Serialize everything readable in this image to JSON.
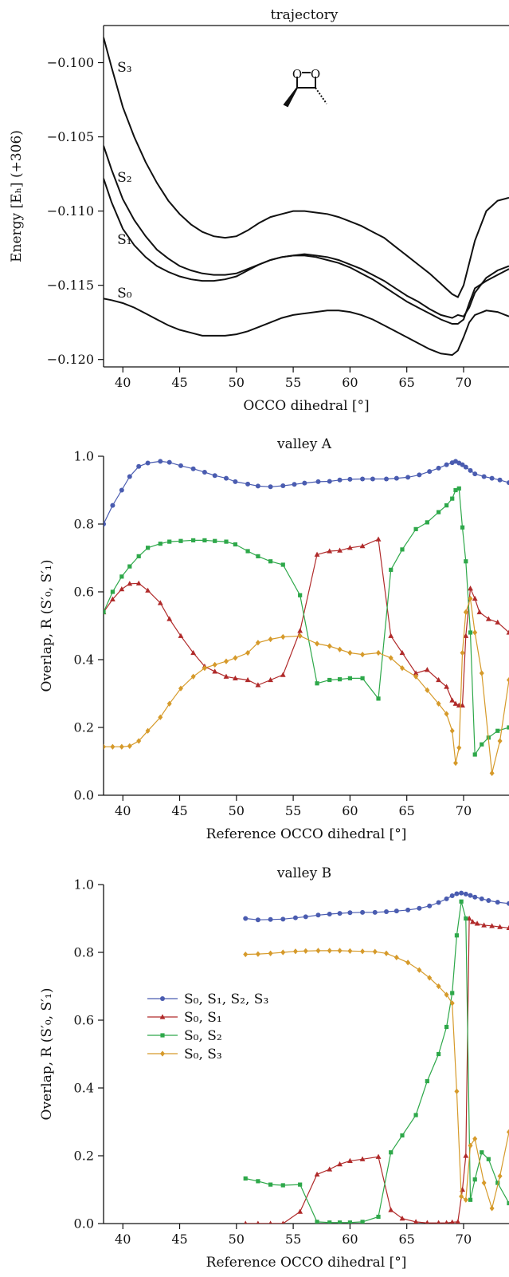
{
  "chart_data": [
    {
      "type": "line",
      "title": "trajectory",
      "xlabel": "OCCO dihedral [°]",
      "ylabel": "Energy [Eₕ] (+306)",
      "xlim": [
        38.3,
        74
      ],
      "ylim": [
        -0.1205,
        -0.0975
      ],
      "xticks": [
        "40",
        "45",
        "50",
        "55",
        "60",
        "65",
        "70"
      ],
      "yticks": [
        "−0.100",
        "−0.105",
        "−0.110",
        "−0.115",
        "−0.120"
      ],
      "grid": false,
      "series": [
        {
          "name": "S₃",
          "color": "#111111",
          "x": [
            38.3,
            39,
            40,
            41,
            42,
            43,
            44,
            45,
            46,
            47,
            48,
            49,
            50,
            51,
            52,
            53,
            54,
            55,
            56,
            57,
            58,
            59,
            60,
            61,
            62,
            63,
            64,
            65,
            66,
            67,
            68,
            69,
            69.5,
            70,
            70.5,
            71,
            72,
            73,
            74
          ],
          "y": [
            -0.0983,
            -0.1003,
            -0.103,
            -0.105,
            -0.1067,
            -0.1081,
            -0.1093,
            -0.1102,
            -0.1109,
            -0.1114,
            -0.1117,
            -0.1118,
            -0.1117,
            -0.1113,
            -0.1108,
            -0.1104,
            -0.1102,
            -0.11,
            -0.11,
            -0.1101,
            -0.1102,
            -0.1104,
            -0.1107,
            -0.111,
            -0.1114,
            -0.1118,
            -0.1124,
            -0.113,
            -0.1136,
            -0.1142,
            -0.1149,
            -0.1156,
            -0.1158,
            -0.115,
            -0.1135,
            -0.112,
            -0.11,
            -0.1093,
            -0.1091
          ]
        },
        {
          "name": "S₂",
          "color": "#111111",
          "x": [
            38.3,
            39,
            40,
            41,
            42,
            43,
            44,
            45,
            46,
            47,
            48,
            49,
            50,
            51,
            52,
            53,
            54,
            55,
            56,
            57,
            58,
            59,
            60,
            61,
            62,
            63,
            64,
            65,
            66,
            67,
            68,
            69,
            69.5,
            70,
            70.5,
            71,
            72,
            73,
            74
          ],
          "y": [
            -0.1056,
            -0.1072,
            -0.1092,
            -0.1106,
            -0.1117,
            -0.1126,
            -0.1132,
            -0.1137,
            -0.114,
            -0.1142,
            -0.1143,
            -0.1143,
            -0.1142,
            -0.1139,
            -0.1136,
            -0.1133,
            -0.1131,
            -0.113,
            -0.1129,
            -0.113,
            -0.1131,
            -0.1133,
            -0.1136,
            -0.1139,
            -0.1143,
            -0.1147,
            -0.1152,
            -0.1157,
            -0.1161,
            -0.1166,
            -0.117,
            -0.1172,
            -0.117,
            -0.1171,
            -0.1165,
            -0.1155,
            -0.1145,
            -0.114,
            -0.1137
          ]
        },
        {
          "name": "S₁",
          "color": "#111111",
          "x": [
            38.3,
            39,
            40,
            41,
            42,
            43,
            44,
            45,
            46,
            47,
            48,
            49,
            50,
            51,
            52,
            53,
            54,
            55,
            56,
            57,
            58,
            59,
            60,
            61,
            62,
            63,
            64,
            65,
            66,
            67,
            68,
            69,
            69.5,
            70,
            70.5,
            71,
            72,
            73,
            74
          ],
          "y": [
            -0.1078,
            -0.1094,
            -0.1112,
            -0.1123,
            -0.1131,
            -0.1137,
            -0.1141,
            -0.1144,
            -0.1146,
            -0.1147,
            -0.1147,
            -0.1146,
            -0.1144,
            -0.114,
            -0.1136,
            -0.1133,
            -0.1131,
            -0.113,
            -0.113,
            -0.1131,
            -0.1133,
            -0.1135,
            -0.1138,
            -0.1142,
            -0.1146,
            -0.1151,
            -0.1156,
            -0.1161,
            -0.1165,
            -0.1169,
            -0.1173,
            -0.1176,
            -0.1176,
            -0.1173,
            -0.1162,
            -0.1152,
            -0.1147,
            -0.1143,
            -0.1139
          ]
        },
        {
          "name": "S₀",
          "color": "#111111",
          "x": [
            38.3,
            39,
            40,
            41,
            42,
            43,
            44,
            45,
            46,
            47,
            48,
            49,
            50,
            51,
            52,
            53,
            54,
            55,
            56,
            57,
            58,
            59,
            60,
            61,
            62,
            63,
            64,
            65,
            66,
            67,
            68,
            69,
            69.5,
            70,
            70.5,
            71,
            72,
            73,
            74
          ],
          "y": [
            -0.1159,
            -0.116,
            -0.1162,
            -0.1165,
            -0.1169,
            -0.1173,
            -0.1177,
            -0.118,
            -0.1182,
            -0.1184,
            -0.1184,
            -0.1184,
            -0.1183,
            -0.1181,
            -0.1178,
            -0.1175,
            -0.1172,
            -0.117,
            -0.1169,
            -0.1168,
            -0.1167,
            -0.1167,
            -0.1168,
            -0.117,
            -0.1173,
            -0.1177,
            -0.1181,
            -0.1185,
            -0.1189,
            -0.1193,
            -0.1196,
            -0.1197,
            -0.1194,
            -0.1185,
            -0.1175,
            -0.117,
            -0.1167,
            -0.1168,
            -0.1171
          ]
        }
      ],
      "annotations": [
        "S₃",
        "S₂",
        "S₁",
        "S₀"
      ]
    },
    {
      "type": "line",
      "title": "valley A",
      "xlabel": "Reference OCCO dihedral [°]",
      "ylabel": "Overlap, R (S′₀, S′₁)",
      "xlim": [
        38.3,
        74
      ],
      "ylim": [
        0,
        1
      ],
      "xticks": [
        "40",
        "45",
        "50",
        "55",
        "60",
        "65",
        "70"
      ],
      "yticks": [
        "0.0",
        "0.2",
        "0.4",
        "0.6",
        "0.8",
        "1.0"
      ],
      "grid": false,
      "series": [
        {
          "name": "S₀, S₁, S₂, S₃",
          "color": "#4a5cb0",
          "marker": "circle",
          "x": [
            38.3,
            39.1,
            39.9,
            40.6,
            41.4,
            42.2,
            43.3,
            44.1,
            45.1,
            46.2,
            47.2,
            48.1,
            49.1,
            49.9,
            51.0,
            51.9,
            53.0,
            54.1,
            55.1,
            56.0,
            57.2,
            58.2,
            59.1,
            60.0,
            61.1,
            62.0,
            63.2,
            64.1,
            65.1,
            66.1,
            67.0,
            67.8,
            68.5,
            69.0,
            69.3,
            69.6,
            69.9,
            70.2,
            70.6,
            71.0,
            71.8,
            72.5,
            73.2,
            74
          ],
          "y": [
            0.8,
            0.855,
            0.9,
            0.94,
            0.97,
            0.98,
            0.985,
            0.982,
            0.972,
            0.963,
            0.953,
            0.943,
            0.935,
            0.925,
            0.918,
            0.912,
            0.91,
            0.913,
            0.917,
            0.921,
            0.925,
            0.926,
            0.93,
            0.932,
            0.933,
            0.933,
            0.933,
            0.935,
            0.938,
            0.945,
            0.955,
            0.965,
            0.975,
            0.981,
            0.985,
            0.98,
            0.975,
            0.968,
            0.958,
            0.948,
            0.94,
            0.935,
            0.93,
            0.922
          ]
        },
        {
          "name": "S₀, S₁",
          "color": "#b02a2a",
          "marker": "triangle",
          "x": [
            38.3,
            39.1,
            39.9,
            40.6,
            41.4,
            42.2,
            43.3,
            44.1,
            45.1,
            46.2,
            47.2,
            48.1,
            49.1,
            49.9,
            51.0,
            51.9,
            53.0,
            54.1,
            55.6,
            57.1,
            58.2,
            59.1,
            60.0,
            61.1,
            62.5,
            63.6,
            64.6,
            65.8,
            66.8,
            67.8,
            68.5,
            69.0,
            69.3,
            69.6,
            69.9,
            70.2,
            70.6,
            71.0,
            71.4,
            72.2,
            73.0,
            74
          ],
          "y": [
            0.54,
            0.578,
            0.608,
            0.624,
            0.625,
            0.604,
            0.567,
            0.52,
            0.47,
            0.42,
            0.38,
            0.365,
            0.35,
            0.345,
            0.34,
            0.325,
            0.34,
            0.355,
            0.485,
            0.71,
            0.72,
            0.722,
            0.73,
            0.735,
            0.755,
            0.47,
            0.42,
            0.36,
            0.37,
            0.34,
            0.32,
            0.28,
            0.27,
            0.265,
            0.265,
            0.47,
            0.61,
            0.58,
            0.54,
            0.52,
            0.51,
            0.48
          ]
        },
        {
          "name": "S₀, S₂",
          "color": "#2ea84a",
          "marker": "square",
          "x": [
            38.3,
            39.1,
            39.9,
            40.6,
            41.4,
            42.2,
            43.3,
            44.1,
            45.1,
            46.2,
            47.2,
            48.1,
            49.1,
            49.9,
            51.0,
            51.9,
            53.0,
            54.1,
            55.6,
            57.1,
            58.2,
            59.1,
            60.0,
            61.1,
            62.5,
            63.6,
            64.6,
            65.8,
            66.8,
            67.8,
            68.5,
            69.0,
            69.3,
            69.6,
            69.9,
            70.2,
            70.6,
            71.0,
            71.6,
            72.2,
            73.0,
            74
          ],
          "y": [
            0.54,
            0.6,
            0.645,
            0.675,
            0.705,
            0.73,
            0.742,
            0.748,
            0.75,
            0.752,
            0.752,
            0.75,
            0.748,
            0.74,
            0.72,
            0.705,
            0.69,
            0.68,
            0.59,
            0.33,
            0.34,
            0.342,
            0.345,
            0.345,
            0.285,
            0.665,
            0.725,
            0.785,
            0.805,
            0.835,
            0.855,
            0.875,
            0.9,
            0.905,
            0.79,
            0.69,
            0.48,
            0.12,
            0.15,
            0.17,
            0.19,
            0.2
          ]
        },
        {
          "name": "S₀, S₃",
          "color": "#d69a2a",
          "marker": "diamond",
          "x": [
            38.3,
            39.1,
            39.9,
            40.6,
            41.4,
            42.2,
            43.3,
            44.1,
            45.1,
            46.2,
            47.2,
            48.1,
            49.1,
            49.9,
            51.0,
            51.9,
            53.0,
            54.1,
            55.6,
            57.1,
            58.2,
            59.1,
            60.0,
            61.1,
            62.5,
            63.6,
            64.6,
            65.8,
            66.8,
            67.8,
            68.5,
            69.0,
            69.3,
            69.6,
            69.9,
            70.2,
            70.6,
            71.0,
            71.6,
            72.5,
            73.2,
            74
          ],
          "y": [
            0.143,
            0.143,
            0.143,
            0.145,
            0.16,
            0.19,
            0.23,
            0.27,
            0.315,
            0.35,
            0.375,
            0.385,
            0.395,
            0.405,
            0.42,
            0.45,
            0.46,
            0.467,
            0.47,
            0.447,
            0.44,
            0.43,
            0.42,
            0.415,
            0.42,
            0.405,
            0.375,
            0.35,
            0.31,
            0.27,
            0.24,
            0.19,
            0.095,
            0.14,
            0.42,
            0.54,
            0.58,
            0.48,
            0.36,
            0.065,
            0.16,
            0.34
          ]
        }
      ]
    },
    {
      "type": "line",
      "title": "valley B",
      "xlabel": "Reference OCCO dihedral [°]",
      "ylabel": "Overlap, R (S′₀, S′₁)",
      "xlim": [
        38.3,
        74
      ],
      "ylim": [
        0,
        1
      ],
      "xticks": [
        "40",
        "45",
        "50",
        "55",
        "60",
        "65",
        "70"
      ],
      "yticks": [
        "0.0",
        "0.2",
        "0.4",
        "0.6",
        "0.8",
        "1.0"
      ],
      "grid": false,
      "legend": "center-left",
      "series": [
        {
          "name": "S₀, S₁, S₂, S₃",
          "color": "#4a5cb0",
          "marker": "circle",
          "x": [
            50.8,
            51.9,
            53.0,
            54.1,
            55.2,
            56.1,
            57.2,
            58.2,
            59.1,
            60.0,
            61.1,
            62.2,
            63.2,
            64.1,
            65.1,
            66.1,
            67.0,
            67.8,
            68.5,
            69.0,
            69.4,
            69.8,
            70.2,
            70.6,
            71.0,
            71.6,
            72.2,
            73.0,
            74
          ],
          "y": [
            0.9,
            0.896,
            0.897,
            0.898,
            0.902,
            0.905,
            0.91,
            0.913,
            0.915,
            0.917,
            0.918,
            0.918,
            0.92,
            0.922,
            0.925,
            0.93,
            0.937,
            0.947,
            0.958,
            0.967,
            0.973,
            0.975,
            0.972,
            0.968,
            0.963,
            0.958,
            0.953,
            0.948,
            0.944
          ]
        },
        {
          "name": "S₀, S₁",
          "color": "#b02a2a",
          "marker": "triangle",
          "x": [
            50.8,
            51.9,
            53.0,
            54.1,
            55.6,
            57.1,
            58.2,
            59.1,
            60.0,
            61.1,
            62.5,
            63.6,
            64.6,
            65.8,
            66.8,
            67.8,
            68.5,
            69.0,
            69.5,
            69.9,
            70.2,
            70.5,
            70.8,
            71.2,
            71.8,
            72.5,
            73.2,
            74
          ],
          "y": [
            0.0,
            0.0,
            0.0,
            0.0,
            0.035,
            0.145,
            0.16,
            0.175,
            0.185,
            0.19,
            0.197,
            0.04,
            0.015,
            0.005,
            0.002,
            0.002,
            0.002,
            0.004,
            0.005,
            0.1,
            0.2,
            0.9,
            0.89,
            0.885,
            0.88,
            0.878,
            0.875,
            0.872
          ]
        },
        {
          "name": "S₀, S₂",
          "color": "#2ea84a",
          "marker": "square",
          "x": [
            50.8,
            51.9,
            53.0,
            54.1,
            55.6,
            57.1,
            58.2,
            59.1,
            60.0,
            61.1,
            62.5,
            63.6,
            64.6,
            65.8,
            66.8,
            67.8,
            68.5,
            69.0,
            69.4,
            69.8,
            70.2,
            70.6,
            71.0,
            71.6,
            72.2,
            73.0,
            74
          ],
          "y": [
            0.133,
            0.125,
            0.115,
            0.113,
            0.115,
            0.005,
            0.003,
            0.003,
            0.003,
            0.005,
            0.02,
            0.21,
            0.26,
            0.32,
            0.42,
            0.5,
            0.58,
            0.68,
            0.85,
            0.95,
            0.9,
            0.07,
            0.13,
            0.21,
            0.19,
            0.12,
            0.06
          ]
        },
        {
          "name": "S₀, S₃",
          "color": "#d69a2a",
          "marker": "diamond",
          "x": [
            50.8,
            51.9,
            53.0,
            54.1,
            55.2,
            56.1,
            57.2,
            58.2,
            59.1,
            60.0,
            61.1,
            62.2,
            63.2,
            64.1,
            65.1,
            66.1,
            67.0,
            67.8,
            68.5,
            69.0,
            69.4,
            69.8,
            70.2,
            70.6,
            71.0,
            71.8,
            72.5,
            73.2,
            74
          ],
          "y": [
            0.794,
            0.795,
            0.797,
            0.8,
            0.803,
            0.804,
            0.805,
            0.805,
            0.805,
            0.804,
            0.803,
            0.802,
            0.797,
            0.785,
            0.77,
            0.748,
            0.725,
            0.7,
            0.675,
            0.65,
            0.39,
            0.08,
            0.07,
            0.23,
            0.25,
            0.12,
            0.045,
            0.14,
            0.27
          ]
        }
      ]
    }
  ]
}
